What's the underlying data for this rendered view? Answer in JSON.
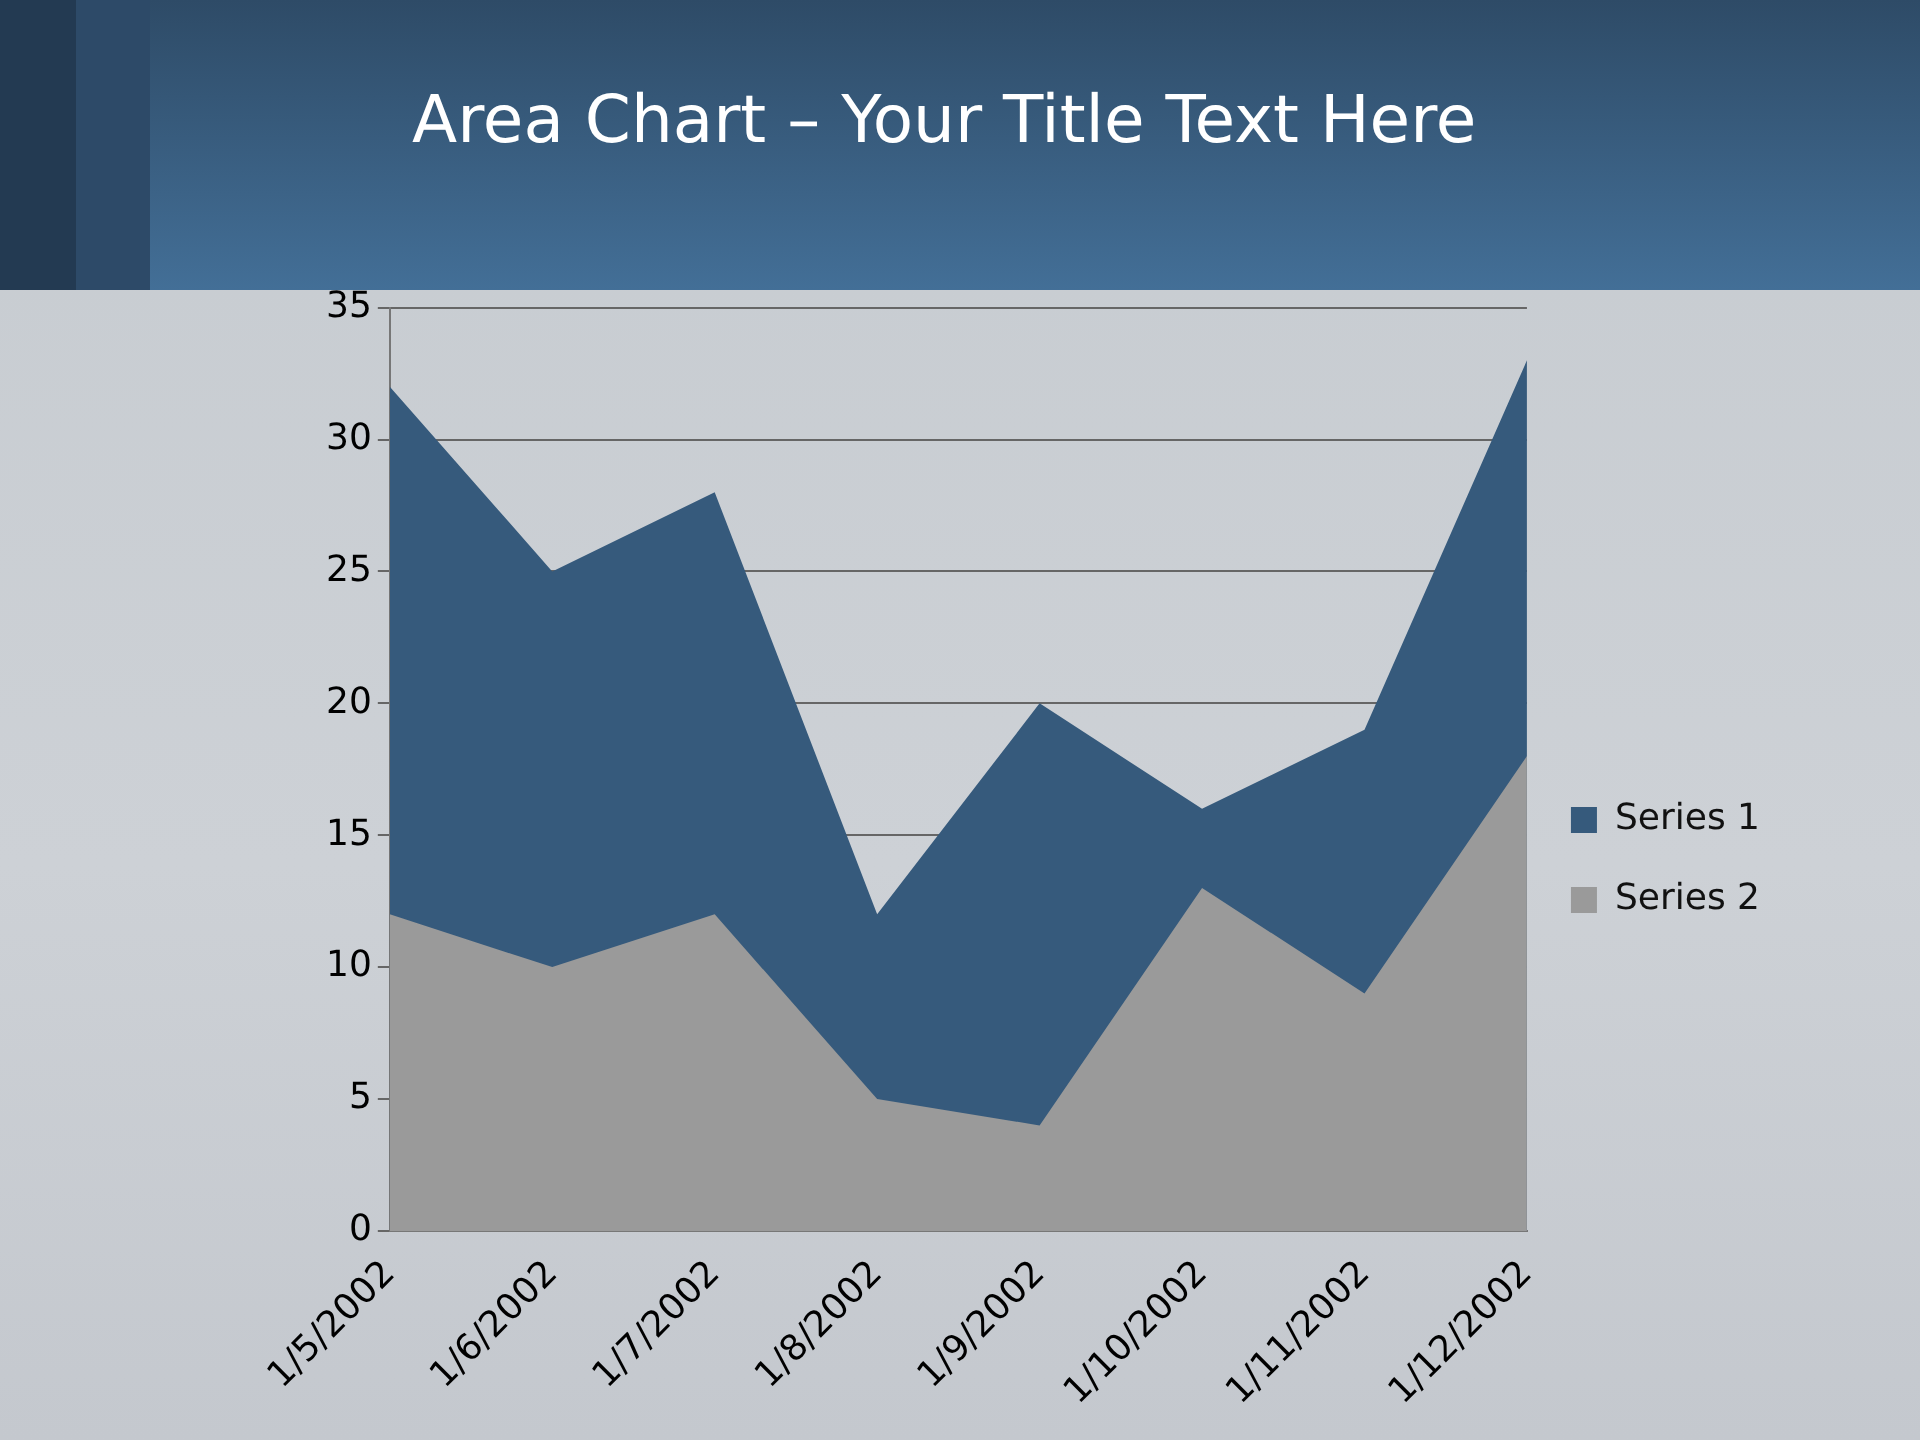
{
  "chart_data": {
    "type": "area",
    "title": "Area Chart – Your Title Text Here",
    "categories": [
      "1/5/2002",
      "1/6/2002",
      "1/7/2002",
      "1/8/2002",
      "1/9/2002",
      "1/10/2002",
      "1/11/2002",
      "1/12/2002"
    ],
    "series": [
      {
        "name": "Series 1",
        "color": "#365a7c",
        "values": [
          32,
          25,
          28,
          12,
          20,
          16,
          19,
          33
        ]
      },
      {
        "name": "Series 2",
        "color": "#9a9a9a",
        "values": [
          12,
          10,
          12,
          5,
          4,
          13,
          9,
          18
        ]
      }
    ],
    "ylim": [
      0,
      35
    ],
    "yticks": [
      0,
      5,
      10,
      15,
      20,
      25,
      30,
      35
    ],
    "grid": "y",
    "legend": "right"
  }
}
